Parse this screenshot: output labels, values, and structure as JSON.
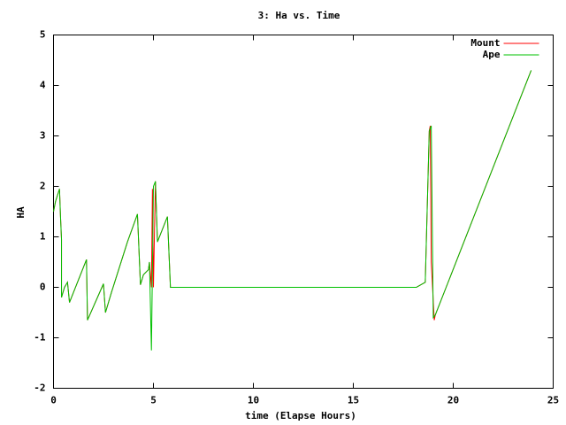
{
  "chart_data": {
    "type": "line",
    "title": "3: Ha vs. Time",
    "x_label": "time (Elapse Hours)",
    "y_label": "HA",
    "xlim": [
      0,
      25
    ],
    "ylim": [
      -2,
      5
    ],
    "xticks": [
      0,
      5,
      10,
      15,
      20,
      25
    ],
    "yticks": [
      -2,
      -1,
      0,
      1,
      2,
      3,
      4,
      5
    ],
    "grid": false,
    "legend": "top-right",
    "series": [
      {
        "name": "Mount",
        "color": "#ff0000",
        "x": [
          0,
          0.1,
          0.3,
          0.35,
          0.4,
          0.4,
          0.55,
          0.7,
          0.8,
          1.65,
          1.7,
          2.5,
          2.6,
          2.9,
          3.3,
          3.7,
          4.2,
          4.35,
          4.5,
          4.75,
          4.8,
          4.9,
          4.95,
          5.0,
          5.1,
          5.2,
          5.7,
          5.85,
          18.15,
          18.6,
          18.8,
          18.85,
          18.9,
          19.05,
          19.1,
          23.9
        ],
        "values": [
          1.5,
          1.7,
          1.95,
          1.4,
          0.95,
          -0.2,
          0.0,
          0.1,
          -0.3,
          0.55,
          -0.65,
          0.07,
          -0.5,
          -0.1,
          0.4,
          0.9,
          1.45,
          0.05,
          0.25,
          0.35,
          0.5,
          0.0,
          1.95,
          0.0,
          2.1,
          0.9,
          1.4,
          0.0,
          0.0,
          0.1,
          3.1,
          3.2,
          0.5,
          -0.65,
          -0.55,
          4.3
        ]
      },
      {
        "name": "Ape",
        "color": "#00c000",
        "x": [
          0,
          0.1,
          0.3,
          0.35,
          0.4,
          0.4,
          0.55,
          0.7,
          0.8,
          1.65,
          1.7,
          2.5,
          2.6,
          2.9,
          3.3,
          3.7,
          4.2,
          4.35,
          4.5,
          4.75,
          4.8,
          4.9,
          5.0,
          5.1,
          5.2,
          5.7,
          5.85,
          18.15,
          18.6,
          18.8,
          18.9,
          19.0,
          19.1,
          23.9
        ],
        "values": [
          1.5,
          1.7,
          1.95,
          1.4,
          0.95,
          -0.2,
          0.0,
          0.1,
          -0.3,
          0.55,
          -0.65,
          0.07,
          -0.5,
          -0.1,
          0.4,
          0.9,
          1.45,
          0.05,
          0.25,
          0.35,
          0.5,
          -1.25,
          2.0,
          2.1,
          0.9,
          1.4,
          0.0,
          0.0,
          0.1,
          3.1,
          3.2,
          -0.6,
          -0.55,
          4.3
        ]
      }
    ]
  }
}
